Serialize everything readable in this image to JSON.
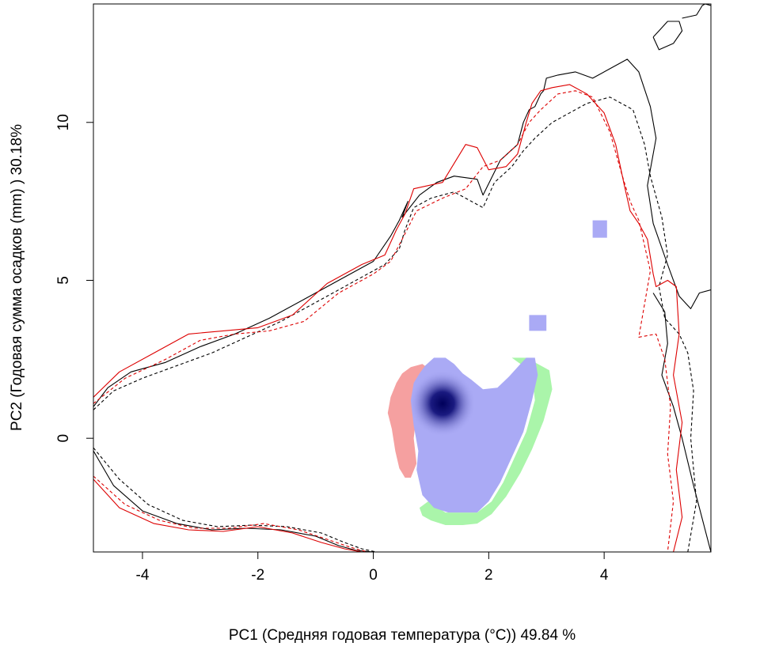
{
  "chart_data": {
    "type": "heatmap",
    "title": "",
    "xlabel": "PC1 (Средняя годовая температура (°C)) 49.84 %",
    "ylabel": "PC2 (Годовая сумма осадков  (mm) ) 30.18%",
    "xlim": [
      -4.85,
      5.85
    ],
    "ylim": [
      -3.6,
      13.75
    ],
    "x_ticks": [
      -4,
      -2,
      0,
      2,
      4
    ],
    "y_ticks": [
      0,
      5,
      10
    ],
    "grid": false,
    "legend": "none",
    "colors": {
      "overlap": "#aaaaf5",
      "overlap_peak": "#00005a",
      "unique_first": "#f5a0a0",
      "unique_second": "#aaf5aa",
      "envelope_black": "#000000",
      "envelope_red": "#dd0000"
    },
    "regions": [
      {
        "name": "overlap",
        "x": [
          1.05,
          1.25,
          1.4,
          1.55,
          1.7,
          1.9,
          2.15,
          2.35,
          2.55,
          2.65,
          2.8,
          2.85,
          2.75,
          2.6,
          2.4,
          2.2,
          2.0,
          1.8,
          1.55,
          1.3,
          1.05,
          0.85,
          0.75,
          0.78,
          0.7,
          0.65,
          0.7,
          0.8,
          0.9,
          1.05
        ],
        "y": [
          2.55,
          2.55,
          2.35,
          2.05,
          1.85,
          1.55,
          1.6,
          1.95,
          2.35,
          2.55,
          2.55,
          2.0,
          1.2,
          0.2,
          -0.6,
          -1.4,
          -2.0,
          -2.35,
          -2.35,
          -2.35,
          -2.2,
          -1.8,
          -1.0,
          -0.4,
          0.4,
          1.2,
          1.75,
          2.05,
          2.3,
          2.55
        ]
      },
      {
        "name": "unique_first",
        "x": [
          0.65,
          0.85,
          1.0,
          0.95,
          0.8,
          0.75,
          0.7,
          0.75,
          0.65,
          0.55,
          0.45,
          0.38,
          0.32,
          0.25,
          0.3,
          0.4,
          0.5,
          0.65
        ],
        "y": [
          2.25,
          2.35,
          2.15,
          1.95,
          1.5,
          0.8,
          0.0,
          -0.8,
          -1.25,
          -1.25,
          -0.95,
          -0.4,
          0.3,
          0.8,
          1.3,
          1.75,
          2.05,
          2.25
        ]
      },
      {
        "name": "unique_second",
        "x": [
          2.4,
          2.65,
          2.85,
          3.05,
          3.1,
          2.95,
          2.75,
          2.55,
          2.3,
          2.05,
          1.8,
          1.55,
          1.25,
          1.0,
          0.85,
          0.8,
          0.95,
          1.25,
          1.55,
          1.8,
          2.05,
          2.25,
          2.45,
          2.65,
          2.8,
          2.75,
          2.55,
          2.4
        ],
        "y": [
          2.55,
          2.55,
          2.35,
          2.15,
          1.55,
          0.55,
          -0.35,
          -1.1,
          -1.85,
          -2.4,
          -2.7,
          -2.75,
          -2.75,
          -2.6,
          -2.45,
          -2.2,
          -2.0,
          -2.35,
          -2.35,
          -2.35,
          -2.0,
          -1.4,
          -0.6,
          0.2,
          1.2,
          2.0,
          2.35,
          2.55
        ]
      },
      {
        "name": "overlap",
        "x": [
          3.8,
          4.05,
          4.05,
          3.8,
          3.8
        ],
        "y": [
          6.9,
          6.9,
          6.35,
          6.35,
          6.9
        ]
      },
      {
        "name": "overlap",
        "x": [
          2.7,
          3.0,
          3.0,
          2.7,
          2.7
        ],
        "y": [
          3.9,
          3.9,
          3.4,
          3.4,
          3.9
        ]
      },
      {
        "name": "overlap_peak",
        "x": [
          1.2
        ],
        "y": [
          1.1
        ]
      }
    ],
    "series": [
      {
        "color": "#000000",
        "style": "solid",
        "x": [
          -4.85,
          -4.6,
          -4.2,
          -3.6,
          -3.0,
          -2.4,
          -1.8,
          -1.2,
          -0.6,
          0.0,
          0.3,
          0.45,
          0.6,
          0.5,
          0.8,
          1.1,
          1.4,
          1.8,
          1.9,
          2.2,
          2.5,
          2.6,
          2.7,
          2.8,
          2.9,
          2.95,
          3.0,
          3.2,
          3.5,
          3.8,
          4.1,
          4.4,
          4.6,
          4.8,
          4.9,
          4.75,
          4.85,
          5.1,
          5.3,
          5.5,
          5.65,
          5.85
        ],
        "y": [
          1.0,
          1.6,
          2.1,
          2.4,
          2.9,
          3.3,
          3.8,
          4.4,
          5.0,
          5.6,
          6.4,
          6.9,
          7.5,
          7.0,
          7.7,
          8.1,
          8.3,
          8.2,
          7.7,
          8.8,
          9.3,
          10.0,
          10.4,
          10.5,
          10.9,
          11.0,
          11.4,
          11.5,
          11.6,
          11.4,
          11.7,
          12.0,
          11.6,
          10.5,
          9.5,
          8.0,
          6.8,
          5.5,
          4.5,
          4.1,
          4.6,
          4.7
        ]
      },
      {
        "color": "#000000",
        "style": "solid",
        "x": [
          4.85,
          5.05,
          5.1,
          5.0,
          5.2,
          5.35,
          5.55,
          5.85
        ],
        "y": [
          4.6,
          4.0,
          3.0,
          2.0,
          1.0,
          0.0,
          -1.5,
          -3.6
        ]
      },
      {
        "color": "#000000",
        "style": "dashed",
        "x": [
          -4.85,
          -4.5,
          -4.0,
          -3.4,
          -2.8,
          -2.2,
          -1.6,
          -1.0,
          -0.4,
          0.2,
          0.45,
          0.55,
          0.7,
          1.0,
          1.4,
          1.9,
          2.1,
          2.4,
          2.6,
          2.8,
          3.1,
          3.4,
          3.7,
          4.1,
          4.5,
          4.7,
          4.8,
          5.0,
          5.1,
          4.95,
          5.05,
          5.3,
          5.45,
          5.55,
          5.5,
          5.6,
          5.45
        ],
        "y": [
          0.9,
          1.5,
          1.9,
          2.3,
          2.7,
          3.2,
          3.7,
          4.3,
          4.9,
          5.5,
          6.0,
          6.6,
          7.3,
          7.6,
          7.8,
          7.3,
          8.1,
          8.6,
          9.1,
          9.5,
          10.0,
          10.3,
          10.6,
          10.8,
          10.4,
          9.3,
          8.3,
          7.0,
          5.8,
          4.8,
          3.8,
          3.3,
          2.7,
          1.5,
          0.0,
          -2.0,
          -3.6
        ]
      },
      {
        "color": "#dd0000",
        "style": "solid",
        "x": [
          -4.85,
          -4.4,
          -3.8,
          -3.2,
          -2.6,
          -2.0,
          -1.4,
          -0.8,
          -0.2,
          0.2,
          0.4,
          0.55,
          0.7,
          1.2,
          1.6,
          1.8,
          2.0,
          2.3,
          2.5,
          2.65,
          2.75,
          2.9,
          3.1,
          3.4,
          3.7,
          4.0,
          4.2,
          4.35,
          4.45,
          4.6,
          4.75,
          4.85,
          4.9,
          5.1,
          5.25,
          5.3,
          5.2,
          5.35,
          5.25,
          5.35,
          5.2
        ],
        "y": [
          1.3,
          2.1,
          2.7,
          3.3,
          3.4,
          3.5,
          3.9,
          4.9,
          5.5,
          5.8,
          6.6,
          7.1,
          7.9,
          8.1,
          9.3,
          9.2,
          8.5,
          8.6,
          9.0,
          10.0,
          10.6,
          11.0,
          11.1,
          11.2,
          10.9,
          10.3,
          9.3,
          8.0,
          7.2,
          6.8,
          6.3,
          5.2,
          4.8,
          5.0,
          4.8,
          3.3,
          2.0,
          0.5,
          -1.0,
          -2.5,
          -3.6
        ]
      },
      {
        "color": "#dd0000",
        "style": "dashed",
        "x": [
          -4.85,
          -4.3,
          -3.6,
          -3.0,
          -2.4,
          -1.8,
          -1.2,
          -0.6,
          0.0,
          0.3,
          0.5,
          0.75,
          1.2,
          1.6,
          1.9,
          2.2,
          2.5,
          2.7,
          2.9,
          3.2,
          3.5,
          3.8,
          4.1,
          4.3,
          4.45,
          4.6,
          4.7,
          4.8,
          4.6,
          4.9,
          5.05,
          5.15,
          5.1,
          5.2,
          5.1
        ],
        "y": [
          1.1,
          1.9,
          2.5,
          3.1,
          3.3,
          3.4,
          3.7,
          4.6,
          5.2,
          5.6,
          6.3,
          7.2,
          7.6,
          7.9,
          8.6,
          8.8,
          9.3,
          10.0,
          10.4,
          10.9,
          11.0,
          10.8,
          9.7,
          8.4,
          7.5,
          6.9,
          6.1,
          5.3,
          3.2,
          3.3,
          2.5,
          1.0,
          -0.5,
          -2.0,
          -3.6
        ]
      },
      {
        "color": "#000000",
        "style": "solid",
        "x": [
          -4.85,
          -4.5,
          -4.0,
          -3.4,
          -2.8,
          -2.2,
          -1.6,
          -1.0,
          -0.6,
          -0.3,
          0.0
        ],
        "y": [
          -0.4,
          -1.5,
          -2.3,
          -2.7,
          -2.9,
          -2.85,
          -2.9,
          -3.1,
          -3.4,
          -3.55,
          -3.6
        ]
      },
      {
        "color": "#000000",
        "style": "dashed",
        "x": [
          -4.85,
          -4.4,
          -3.9,
          -3.3,
          -2.7,
          -2.1,
          -1.5,
          -0.9,
          -0.5,
          -0.2,
          0.05
        ],
        "y": [
          -0.3,
          -1.3,
          -2.1,
          -2.6,
          -2.8,
          -2.75,
          -2.8,
          -3.0,
          -3.3,
          -3.5,
          -3.6
        ]
      },
      {
        "color": "#dd0000",
        "style": "solid",
        "x": [
          -4.85,
          -4.4,
          -3.8,
          -3.2,
          -2.6,
          -2.0,
          -1.4,
          -0.9,
          -0.5,
          -0.2
        ],
        "y": [
          -1.3,
          -2.2,
          -2.7,
          -2.9,
          -2.95,
          -2.8,
          -3.0,
          -3.3,
          -3.5,
          -3.6
        ]
      },
      {
        "color": "#dd0000",
        "style": "dashed",
        "x": [
          -4.85,
          -4.3,
          -3.7,
          -3.1,
          -2.5,
          -1.9,
          -1.3,
          -0.8,
          -0.4,
          -0.1
        ],
        "y": [
          -1.2,
          -2.1,
          -2.6,
          -2.85,
          -2.85,
          -2.7,
          -2.9,
          -3.2,
          -3.45,
          -3.6
        ]
      },
      {
        "color": "#000000",
        "style": "solid",
        "x": [
          4.85,
          4.95,
          5.2,
          5.35,
          5.3,
          5.1,
          4.95,
          4.85
        ],
        "y": [
          12.7,
          12.3,
          12.5,
          12.9,
          13.2,
          13.2,
          12.9,
          12.7
        ]
      },
      {
        "color": "#000000",
        "style": "solid",
        "x": [
          5.35,
          5.6,
          5.7,
          5.75,
          5.85
        ],
        "y": [
          13.3,
          13.4,
          13.7,
          13.75,
          13.7
        ]
      }
    ]
  }
}
